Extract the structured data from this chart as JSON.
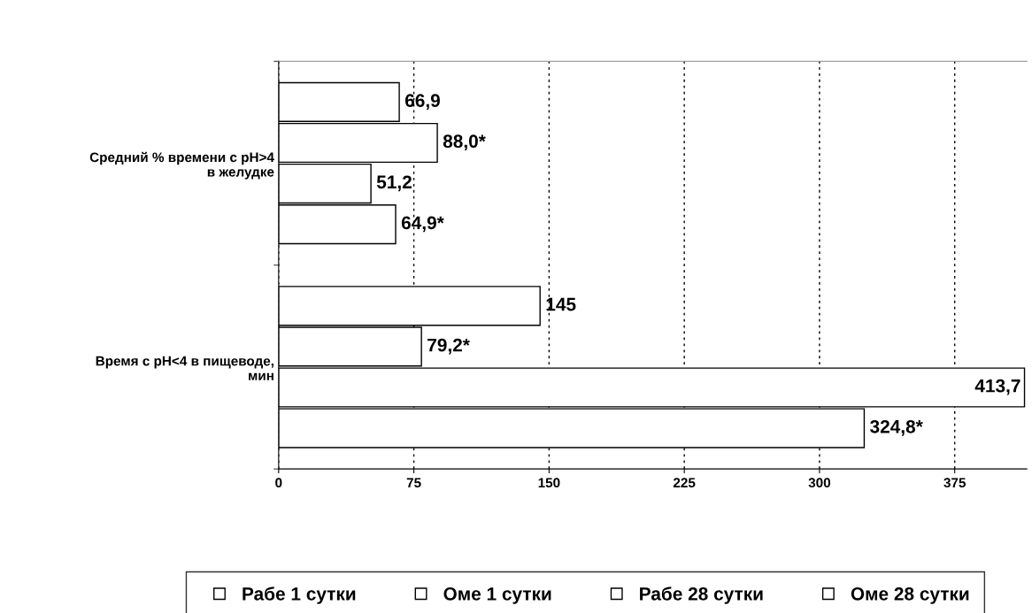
{
  "chart_data": {
    "type": "bar",
    "orientation": "horizontal",
    "categories": [
      "Средний % времени с pH>4\nв желудке",
      "Время с pH<4 в пищеводе,\nмин"
    ],
    "series": [
      {
        "name": "Рабе 1 сутки",
        "color": "#ffffff",
        "values": [
          66.9,
          145
        ],
        "value_labels": [
          "66,9",
          "145"
        ]
      },
      {
        "name": "Оме 1 сутки",
        "color": "#ffffff",
        "values": [
          88.0,
          79.2
        ],
        "value_labels": [
          "88,0*",
          "79,2*"
        ]
      },
      {
        "name": "Рабе 28 сутки",
        "color": "#ffffff",
        "values": [
          51.2,
          413.7
        ],
        "value_labels": [
          "51,2",
          "413,7"
        ]
      },
      {
        "name": "Оме 28 сутки",
        "color": "#ffffff",
        "values": [
          64.9,
          324.8
        ],
        "value_labels": [
          "64,9*",
          "324,8*"
        ]
      }
    ],
    "xlim": [
      0,
      415
    ],
    "xticks": [
      0,
      75,
      150,
      225,
      300,
      375
    ],
    "grid": "x",
    "legend": "bottom"
  }
}
